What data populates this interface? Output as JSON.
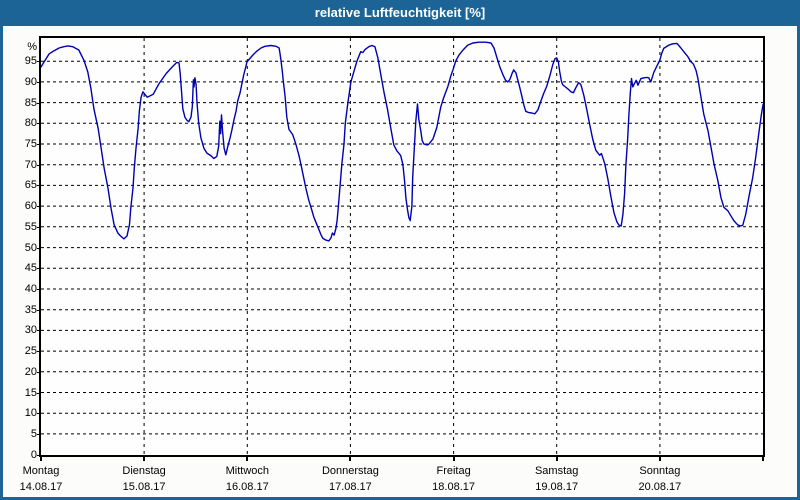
{
  "window": {
    "title": "relative Luftfeuchtigkeit [%]"
  },
  "colors": {
    "titlebar_bg": "#1d6496",
    "frame_border": "#1d6496",
    "page_bg": "#fcfdfa",
    "plot_bg": "#fdfefd",
    "grid": "#000000",
    "line": "#0000b3",
    "title_text": "#ffffff",
    "axis_text": "#000000"
  },
  "chart_data": {
    "type": "line",
    "title": "relative Luftfeuchtigkeit [%]",
    "ylabel": "%",
    "ylim": [
      0,
      100.6
    ],
    "yticks": [
      0,
      5,
      10,
      15,
      20,
      25,
      30,
      35,
      40,
      45,
      50,
      55,
      60,
      65,
      70,
      75,
      80,
      85,
      90,
      95
    ],
    "grid": true,
    "legend_position": "none",
    "x_range_hours": [
      0,
      168
    ],
    "x_days": [
      {
        "name": "Montag",
        "date": "14.08.17"
      },
      {
        "name": "Dienstag",
        "date": "15.08.17"
      },
      {
        "name": "Mittwoch",
        "date": "16.08.17"
      },
      {
        "name": "Donnerstag",
        "date": "17.08.17"
      },
      {
        "name": "Freitag",
        "date": "18.08.17"
      },
      {
        "name": "Samstag",
        "date": "19.08.17"
      },
      {
        "name": "Sonntag",
        "date": "20.08.17"
      }
    ],
    "series": [
      {
        "name": "relative Luftfeuchtigkeit [%]",
        "color": "#0000b3",
        "points": [
          [
            0,
            93.6
          ],
          [
            0.7,
            94.8
          ],
          [
            1.9,
            96.8
          ],
          [
            3,
            97.5
          ],
          [
            4.2,
            98.2
          ],
          [
            5.3,
            98.5
          ],
          [
            6.3,
            98.7
          ],
          [
            7.4,
            98.5
          ],
          [
            8.8,
            97.7
          ],
          [
            10,
            95.2
          ],
          [
            10.9,
            92.4
          ],
          [
            11.6,
            88.4
          ],
          [
            12.3,
            83.5
          ],
          [
            13.3,
            78.7
          ],
          [
            14,
            73.9
          ],
          [
            14.7,
            69.1
          ],
          [
            15.6,
            64.3
          ],
          [
            16.3,
            59.4
          ],
          [
            17,
            55.5
          ],
          [
            17.9,
            53.5
          ],
          [
            18.4,
            52.9
          ],
          [
            19.3,
            52.1
          ],
          [
            20,
            52.8
          ],
          [
            20.6,
            55.6
          ],
          [
            20.9,
            59.6
          ],
          [
            21.4,
            64.4
          ],
          [
            21.7,
            69.2
          ],
          [
            22.1,
            74
          ],
          [
            22.6,
            78.7
          ],
          [
            22.9,
            83.1
          ],
          [
            23.3,
            86.3
          ],
          [
            23.7,
            87.6
          ],
          [
            24.7,
            86.3
          ],
          [
            26.1,
            87
          ],
          [
            27.4,
            89.5
          ],
          [
            29.1,
            92
          ],
          [
            30.7,
            93.8
          ],
          [
            31.6,
            94.7
          ],
          [
            32.1,
            94.6
          ],
          [
            32.4,
            92
          ],
          [
            33,
            83.5
          ],
          [
            33.5,
            81.4
          ],
          [
            34,
            80.7
          ],
          [
            34.4,
            80.4
          ],
          [
            34.9,
            81.5
          ],
          [
            35.2,
            84
          ],
          [
            35.45,
            90.5
          ],
          [
            35.6,
            88.8
          ],
          [
            35.8,
            91
          ],
          [
            36.1,
            89.3
          ],
          [
            36.3,
            85
          ],
          [
            36.7,
            80
          ],
          [
            37.2,
            76.5
          ],
          [
            37.9,
            74
          ],
          [
            38.6,
            72.8
          ],
          [
            39.5,
            72.2
          ],
          [
            40.2,
            71.5
          ],
          [
            40.9,
            72
          ],
          [
            41.35,
            74.5
          ],
          [
            41.6,
            80.5
          ],
          [
            41.8,
            77.5
          ],
          [
            42,
            82
          ],
          [
            42.25,
            78
          ],
          [
            42.6,
            74
          ],
          [
            43,
            72.4
          ],
          [
            43.5,
            74.5
          ],
          [
            44,
            76.5
          ],
          [
            44.4,
            78.3
          ],
          [
            44.9,
            80.9
          ],
          [
            45.4,
            83
          ],
          [
            45.8,
            85.5
          ],
          [
            46.3,
            87.3
          ],
          [
            46.8,
            89.8
          ],
          [
            47.2,
            91.8
          ],
          [
            47.7,
            93.8
          ],
          [
            47.9,
            94.8
          ],
          [
            48.4,
            95.4
          ],
          [
            49.3,
            96.5
          ],
          [
            50.2,
            97.4
          ],
          [
            51.2,
            98.2
          ],
          [
            52.1,
            98.6
          ],
          [
            53.5,
            98.8
          ],
          [
            54.7,
            98.6
          ],
          [
            55.4,
            98.2
          ],
          [
            55.6,
            97
          ],
          [
            55.8,
            95.5
          ],
          [
            56.1,
            93
          ],
          [
            56.4,
            90
          ],
          [
            56.8,
            86.5
          ],
          [
            57.2,
            81.5
          ],
          [
            57.7,
            78.5
          ],
          [
            58.2,
            77.8
          ],
          [
            58.6,
            77.2
          ],
          [
            59.3,
            75
          ],
          [
            60,
            72.3
          ],
          [
            60.5,
            70
          ],
          [
            61.2,
            66.5
          ],
          [
            61.6,
            64.5
          ],
          [
            62.3,
            61.5
          ],
          [
            62.8,
            59.8
          ],
          [
            63.5,
            57.3
          ],
          [
            64.4,
            55
          ],
          [
            65.1,
            53.2
          ],
          [
            65.6,
            52.2
          ],
          [
            66.3,
            51.8
          ],
          [
            67,
            51.6
          ],
          [
            67.5,
            52.4
          ],
          [
            67.8,
            53.5
          ],
          [
            68.2,
            53
          ],
          [
            68.6,
            54.5
          ],
          [
            68.9,
            56.5
          ],
          [
            69.2,
            60
          ],
          [
            69.6,
            65
          ],
          [
            70,
            70
          ],
          [
            70.5,
            75
          ],
          [
            70.8,
            80
          ],
          [
            71.4,
            85
          ],
          [
            72.1,
            90
          ],
          [
            72.8,
            92.5
          ],
          [
            73.5,
            95
          ],
          [
            74.4,
            97.3
          ],
          [
            74.9,
            97.1
          ],
          [
            75.4,
            97.8
          ],
          [
            76.3,
            98.5
          ],
          [
            77,
            98.8
          ],
          [
            77.7,
            98.5
          ],
          [
            78.4,
            95.8
          ],
          [
            79.1,
            91.6
          ],
          [
            79.8,
            87.6
          ],
          [
            80.6,
            83.5
          ],
          [
            81.4,
            78.8
          ],
          [
            82.1,
            74.8
          ],
          [
            82.8,
            73.4
          ],
          [
            83.7,
            72.2
          ],
          [
            84.2,
            70
          ],
          [
            84.6,
            66
          ],
          [
            84.9,
            62
          ],
          [
            85.3,
            59
          ],
          [
            85.6,
            57.2
          ],
          [
            85.9,
            56.5
          ],
          [
            86.3,
            60
          ],
          [
            86.5,
            67
          ],
          [
            86.9,
            74.8
          ],
          [
            87.2,
            80.5
          ],
          [
            87.6,
            84.7
          ],
          [
            87.9,
            81
          ],
          [
            88.4,
            78
          ],
          [
            88.7,
            75.8
          ],
          [
            89.1,
            75
          ],
          [
            89.8,
            74.8
          ],
          [
            90.2,
            74.9
          ],
          [
            91.2,
            76.2
          ],
          [
            92.1,
            79
          ],
          [
            93,
            83.9
          ],
          [
            93.7,
            86.2
          ],
          [
            94.7,
            89
          ],
          [
            95.4,
            91.6
          ],
          [
            95.8,
            92.7
          ],
          [
            96.5,
            95
          ],
          [
            97.2,
            96.4
          ],
          [
            98.2,
            97.7
          ],
          [
            99.3,
            98.9
          ],
          [
            100.5,
            99.4
          ],
          [
            101.9,
            99.6
          ],
          [
            103.5,
            99.6
          ],
          [
            104.7,
            99.4
          ],
          [
            105.4,
            98.2
          ],
          [
            106.1,
            95.8
          ],
          [
            106.8,
            93.5
          ],
          [
            107.5,
            91.7
          ],
          [
            108.1,
            90.4
          ],
          [
            108.6,
            90
          ],
          [
            109.1,
            90.6
          ],
          [
            109.6,
            92
          ],
          [
            110,
            92.9
          ],
          [
            110.5,
            92.2
          ],
          [
            111,
            90.3
          ],
          [
            111.4,
            88.6
          ],
          [
            111.9,
            86.5
          ],
          [
            112.4,
            84.2
          ],
          [
            112.8,
            82.9
          ],
          [
            113.5,
            82.6
          ],
          [
            114.2,
            82.5
          ],
          [
            114.9,
            82.3
          ],
          [
            115.6,
            83.2
          ],
          [
            116.3,
            85.3
          ],
          [
            117,
            87.3
          ],
          [
            117.7,
            89
          ],
          [
            118.4,
            91.4
          ],
          [
            119.1,
            94.2
          ],
          [
            119.6,
            95.6
          ],
          [
            120,
            95.8
          ],
          [
            120.4,
            94.8
          ],
          [
            120.7,
            92.5
          ],
          [
            121.1,
            90.2
          ],
          [
            121.4,
            89.3
          ],
          [
            121.9,
            88.9
          ],
          [
            122.6,
            88.3
          ],
          [
            123.3,
            87.6
          ],
          [
            123.9,
            87.4
          ],
          [
            124.4,
            88.5
          ],
          [
            125.1,
            89.8
          ],
          [
            125.6,
            89.4
          ],
          [
            126.3,
            86.8
          ],
          [
            127,
            83.3
          ],
          [
            127.7,
            79.6
          ],
          [
            128.4,
            76.1
          ],
          [
            129.1,
            73.5
          ],
          [
            129.6,
            72.8
          ],
          [
            130,
            72.3
          ],
          [
            130.4,
            72.7
          ],
          [
            130.7,
            71.8
          ],
          [
            131.2,
            70.2
          ],
          [
            131.9,
            66.5
          ],
          [
            132.6,
            62.3
          ],
          [
            133.3,
            58.5
          ],
          [
            134,
            56.2
          ],
          [
            134.5,
            55.4
          ],
          [
            135,
            55.2
          ],
          [
            135.4,
            58
          ],
          [
            135.8,
            63
          ],
          [
            136.1,
            70
          ],
          [
            136.5,
            76
          ],
          [
            136.8,
            82
          ],
          [
            137.1,
            87
          ],
          [
            137.4,
            90.8
          ],
          [
            137.7,
            88.8
          ],
          [
            138.2,
            89.8
          ],
          [
            138.5,
            90.4
          ],
          [
            138.9,
            89.2
          ],
          [
            139.6,
            90.8
          ],
          [
            140.3,
            91
          ],
          [
            141,
            91.1
          ],
          [
            141.4,
            91
          ],
          [
            141.9,
            90
          ],
          [
            142.6,
            92.3
          ],
          [
            143.3,
            93.8
          ],
          [
            144,
            95.3
          ],
          [
            144.4,
            96.8
          ],
          [
            144.9,
            98.1
          ],
          [
            146.1,
            98.9
          ],
          [
            147,
            99.2
          ],
          [
            148,
            99.3
          ],
          [
            148.9,
            98.2
          ],
          [
            149.8,
            97
          ],
          [
            150.5,
            96.1
          ],
          [
            151.2,
            94.9
          ],
          [
            151.8,
            94.3
          ],
          [
            152.4,
            92.8
          ],
          [
            152.8,
            91.1
          ],
          [
            153.5,
            86.7
          ],
          [
            154.2,
            82.3
          ],
          [
            155.2,
            78.2
          ],
          [
            155.9,
            74.2
          ],
          [
            156.6,
            70.2
          ],
          [
            157.5,
            66.1
          ],
          [
            158.2,
            62.1
          ],
          [
            158.9,
            59.7
          ],
          [
            159.8,
            58.9
          ],
          [
            160.5,
            57.7
          ],
          [
            161.2,
            56.5
          ],
          [
            162.1,
            55.5
          ],
          [
            162.8,
            55.2
          ],
          [
            163.3,
            55.4
          ],
          [
            164,
            58.1
          ],
          [
            164.7,
            62.1
          ],
          [
            165.6,
            66.9
          ],
          [
            166.3,
            71.8
          ],
          [
            167,
            77.4
          ],
          [
            167.6,
            82
          ],
          [
            168,
            84.5
          ]
        ]
      }
    ]
  }
}
